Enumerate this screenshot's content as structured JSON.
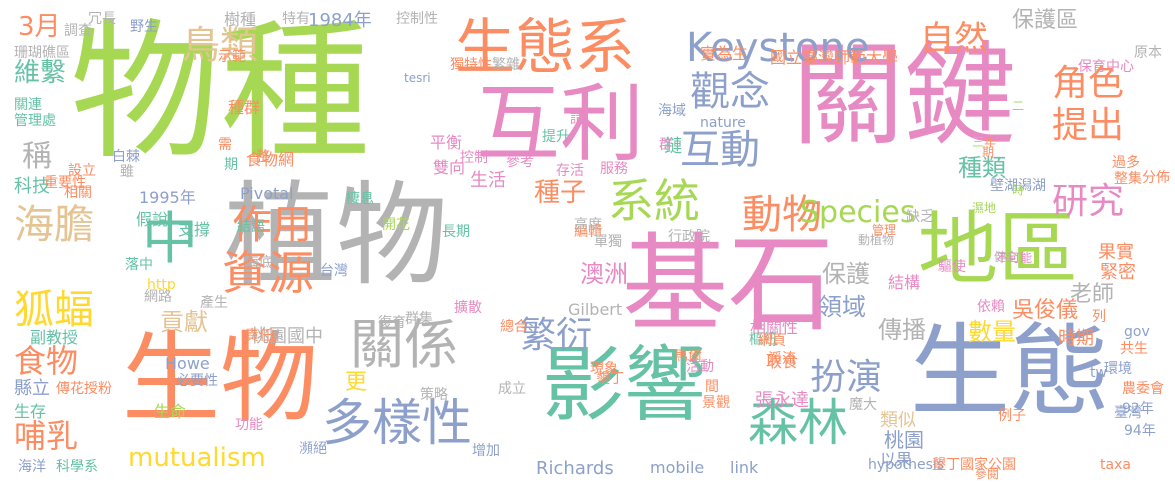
{
  "palette": {
    "green": "#a6d854",
    "orange": "#fc8d62",
    "blue": "#8da0cb",
    "pink": "#e78ac3",
    "teal": "#66c2a5",
    "gray": "#b3b3b3",
    "yellow": "#ffd92f",
    "tan": "#e5c494"
  },
  "words": [
    {
      "text": "物種",
      "color": "green"
    },
    {
      "text": "關鍵",
      "color": "pink"
    },
    {
      "text": "植物",
      "color": "gray"
    },
    {
      "text": "基石",
      "color": "pink"
    },
    {
      "text": "生態",
      "color": "blue"
    },
    {
      "text": "影響",
      "color": "teal"
    },
    {
      "text": "生物",
      "color": "orange"
    },
    {
      "text": "互利",
      "color": "pink"
    },
    {
      "text": "生態系",
      "color": "orange"
    },
    {
      "text": "地區",
      "color": "green"
    },
    {
      "text": "Keystone",
      "color": "blue"
    },
    {
      "text": "中",
      "color": "teal"
    },
    {
      "text": "多樣性",
      "color": "blue"
    },
    {
      "text": "森林",
      "color": "teal"
    },
    {
      "text": "關係",
      "color": "gray"
    },
    {
      "text": "海膽",
      "color": "tan"
    },
    {
      "text": "狐蝠",
      "color": "yellow"
    },
    {
      "text": "資源",
      "color": "orange"
    },
    {
      "text": "作用",
      "color": "orange"
    },
    {
      "text": "系統",
      "color": "green"
    },
    {
      "text": "動物",
      "color": "orange"
    },
    {
      "text": "互動",
      "color": "blue"
    },
    {
      "text": "觀念",
      "color": "blue"
    },
    {
      "text": "鳥類",
      "color": "tan"
    },
    {
      "text": "自然",
      "color": "orange"
    },
    {
      "text": "角色",
      "color": "orange"
    },
    {
      "text": "提出",
      "color": "orange"
    },
    {
      "text": "研究",
      "color": "pink"
    },
    {
      "text": "Species",
      "color": "green"
    },
    {
      "text": "繁衍",
      "color": "blue"
    },
    {
      "text": "扮演",
      "color": "blue"
    },
    {
      "text": "食物",
      "color": "orange"
    },
    {
      "text": "哺乳",
      "color": "orange"
    },
    {
      "text": "mutualism",
      "color": "yellow"
    },
    {
      "text": "稱",
      "color": "gray"
    },
    {
      "text": "3月",
      "color": "orange"
    },
    {
      "text": "維繫",
      "color": "teal"
    },
    {
      "text": "種子",
      "color": "orange"
    },
    {
      "text": "保護區",
      "color": "gray"
    },
    {
      "text": "種類",
      "color": "teal"
    },
    {
      "text": "澳洲",
      "color": "pink"
    },
    {
      "text": "保護",
      "color": "gray"
    },
    {
      "text": "傳播",
      "color": "gray"
    },
    {
      "text": "數量",
      "color": "yellow"
    },
    {
      "text": "貢獻",
      "color": "tan"
    },
    {
      "text": "領域",
      "color": "blue"
    },
    {
      "text": "吳俊儀",
      "color": "orange"
    },
    {
      "text": "老師",
      "color": "gray"
    },
    {
      "text": "桃園國中",
      "color": "gray"
    },
    {
      "text": "更",
      "color": "yellow"
    },
    {
      "text": "縣立",
      "color": "blue"
    },
    {
      "text": "生活",
      "color": "pink"
    },
    {
      "text": "科技",
      "color": "teal"
    },
    {
      "text": "桃園",
      "color": "blue"
    },
    {
      "text": "時期",
      "color": "orange"
    },
    {
      "text": "張永達",
      "color": "pink"
    },
    {
      "text": "生存",
      "color": "teal"
    },
    {
      "text": "生命",
      "color": "green"
    },
    {
      "text": "以果",
      "color": "blue"
    },
    {
      "text": "類似",
      "color": "tan"
    },
    {
      "text": "取食",
      "color": "orange"
    },
    {
      "text": "實為生",
      "color": "orange"
    },
    {
      "text": "國立臺灣師範大學",
      "color": "orange"
    },
    {
      "text": "1984年",
      "color": "blue"
    },
    {
      "text": "1995年",
      "color": "blue"
    },
    {
      "text": "Pivotal",
      "color": "blue"
    },
    {
      "text": "Gilbert",
      "color": "gray"
    },
    {
      "text": "Howe",
      "color": "blue"
    },
    {
      "text": "Richards",
      "color": "blue"
    },
    {
      "text": "mobile",
      "color": "blue"
    },
    {
      "text": "link",
      "color": "blue"
    },
    {
      "text": "hypothesis",
      "color": "blue"
    },
    {
      "text": "taxa",
      "color": "orange"
    },
    {
      "text": "墾丁國家公園",
      "color": "orange"
    },
    {
      "text": "科學系",
      "color": "teal"
    },
    {
      "text": "副教授",
      "color": "teal"
    },
    {
      "text": "假說",
      "color": "teal"
    },
    {
      "text": "支撐",
      "color": "teal"
    },
    {
      "text": "開花",
      "color": "green"
    },
    {
      "text": "長期",
      "color": "teal"
    },
    {
      "text": "編輯",
      "color": "orange"
    },
    {
      "text": "責任",
      "color": "orange"
    },
    {
      "text": "平衡",
      "color": "pink"
    },
    {
      "text": "雙向",
      "color": "pink"
    },
    {
      "text": "鏈",
      "color": "teal"
    },
    {
      "text": "食物網",
      "color": "orange"
    },
    {
      "text": "相關性",
      "color": "pink"
    },
    {
      "text": "樞紐",
      "color": "teal"
    },
    {
      "text": "溪流",
      "color": "orange"
    },
    {
      "text": "結構",
      "color": "pink"
    },
    {
      "text": "緊密",
      "color": "orange"
    },
    {
      "text": "果實",
      "color": "orange"
    },
    {
      "text": "依賴",
      "color": "pink"
    },
    {
      "text": "樹種",
      "color": "gray"
    },
    {
      "text": "特有",
      "color": "gray"
    },
    {
      "text": "控制性",
      "color": "gray"
    },
    {
      "text": "冗長",
      "color": "gray"
    },
    {
      "text": "調查",
      "color": "gray"
    },
    {
      "text": "珊瑚礁區",
      "color": "gray"
    },
    {
      "text": "關連",
      "color": "teal"
    },
    {
      "text": "管理處",
      "color": "teal"
    },
    {
      "text": "設立",
      "color": "orange"
    },
    {
      "text": "重要性",
      "color": "orange"
    },
    {
      "text": "相關",
      "color": "orange"
    },
    {
      "text": "野生",
      "color": "blue"
    },
    {
      "text": "示範",
      "color": "orange"
    },
    {
      "text": "種群",
      "color": "orange"
    },
    {
      "text": "白棘",
      "color": "blue"
    },
    {
      "text": "獨特性",
      "color": "orange"
    },
    {
      "text": "繁雜",
      "color": "gray"
    },
    {
      "text": "保育中心",
      "color": "pink"
    },
    {
      "text": "原本",
      "color": "gray"
    },
    {
      "text": "tesri",
      "color": "blue"
    },
    {
      "text": "海域",
      "color": "blue"
    },
    {
      "text": "nature",
      "color": "blue"
    },
    {
      "text": "提升",
      "color": "teal"
    },
    {
      "text": "請",
      "color": "pink"
    },
    {
      "text": "群",
      "color": "pink"
    },
    {
      "text": "服務",
      "color": "pink"
    },
    {
      "text": "控制",
      "color": "pink"
    },
    {
      "text": "參考",
      "color": "pink"
    },
    {
      "text": "存活",
      "color": "pink"
    },
    {
      "text": "驅使",
      "color": "pink"
    },
    {
      "text": "高度",
      "color": "gray"
    },
    {
      "text": "單獨",
      "color": "gray"
    },
    {
      "text": "行政院",
      "color": "gray"
    },
    {
      "text": "缺乏",
      "color": "gray"
    },
    {
      "text": "健全",
      "color": "gray"
    },
    {
      "text": "動植物",
      "color": "gray"
    },
    {
      "text": "壁湖潟湖",
      "color": "blue"
    },
    {
      "text": "棲息",
      "color": "teal"
    },
    {
      "text": "結語",
      "color": "teal"
    },
    {
      "text": "落中",
      "color": "teal"
    },
    {
      "text": "http",
      "color": "yellow"
    },
    {
      "text": "海底",
      "color": "gray"
    },
    {
      "text": "台灣",
      "color": "blue"
    },
    {
      "text": "網路",
      "color": "gray"
    },
    {
      "text": "產生",
      "color": "gray"
    },
    {
      "text": "擴散",
      "color": "pink"
    },
    {
      "text": "群集",
      "color": "gray"
    },
    {
      "text": "復育",
      "color": "gray"
    },
    {
      "text": "總合",
      "color": "orange"
    },
    {
      "text": "現象",
      "color": "orange"
    },
    {
      "text": "墾丁",
      "color": "orange"
    },
    {
      "text": "傳花授粉",
      "color": "orange"
    },
    {
      "text": "必要性",
      "color": "blue"
    },
    {
      "text": "策略",
      "color": "gray"
    },
    {
      "text": "成立",
      "color": "gray"
    },
    {
      "text": "功能",
      "color": "pink"
    },
    {
      "text": "海洋",
      "color": "blue"
    },
    {
      "text": "瀕絕",
      "color": "blue"
    },
    {
      "text": "增加",
      "color": "blue"
    },
    {
      "text": "景觀",
      "color": "orange"
    },
    {
      "text": "網頁",
      "color": "orange"
    },
    {
      "text": "參閱",
      "color": "orange"
    },
    {
      "text": "農委會",
      "color": "orange"
    },
    {
      "text": "共生",
      "color": "orange"
    },
    {
      "text": "環境",
      "color": "blue"
    },
    {
      "text": "92年",
      "color": "blue"
    },
    {
      "text": "94年",
      "color": "blue"
    },
    {
      "text": "臺灣",
      "color": "blue"
    },
    {
      "text": "過多",
      "color": "orange"
    },
    {
      "text": "整集",
      "color": "orange"
    },
    {
      "text": "分佈",
      "color": "orange"
    },
    {
      "text": "gov",
      "color": "blue"
    },
    {
      "text": "tw",
      "color": "blue"
    },
    {
      "text": "例子",
      "color": "orange"
    },
    {
      "text": "間",
      "color": "orange"
    },
    {
      "text": "列",
      "color": "orange"
    },
    {
      "text": "馬爾",
      "color": "orange"
    },
    {
      "text": "活動",
      "color": "pink"
    },
    {
      "text": "不可能",
      "color": "pink"
    },
    {
      "text": "管理",
      "color": "orange"
    },
    {
      "text": "濕地",
      "color": "green"
    },
    {
      "text": "時",
      "color": "green"
    },
    {
      "text": "二",
      "color": "green"
    },
    {
      "text": "三",
      "color": "green"
    },
    {
      "text": "年",
      "color": "orange"
    },
    {
      "text": "期",
      "color": "orange"
    },
    {
      "text": "整",
      "color": "orange"
    },
    {
      "text": "期",
      "color": "teal"
    },
    {
      "text": "需",
      "color": "orange"
    },
    {
      "text": "雖",
      "color": "gray"
    },
    {
      "text": "魔大",
      "color": "gray"
    }
  ]
}
